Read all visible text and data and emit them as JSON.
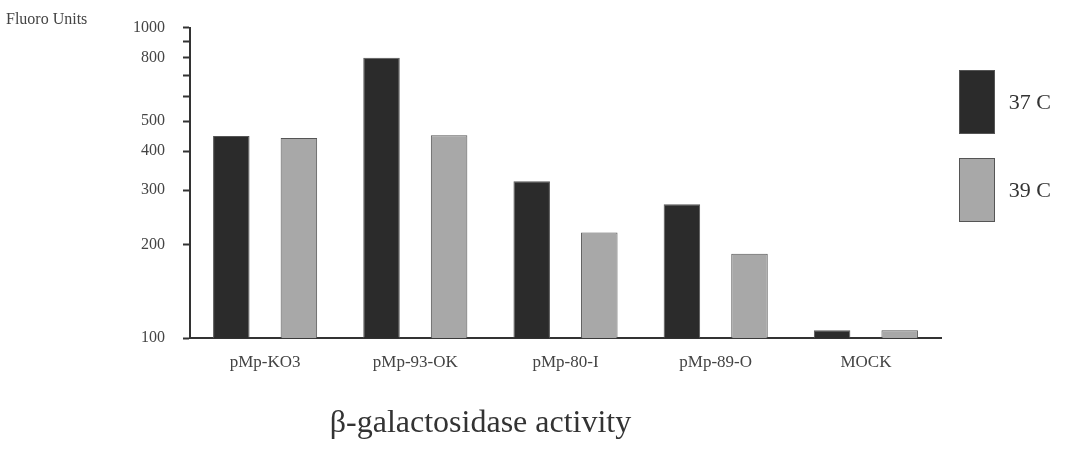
{
  "chart_data": {
    "type": "bar",
    "title": "β-galactosidase activity",
    "ylabel": "Fluoro Units",
    "categories": [
      "pMp-KO3",
      "pMp-93-OK",
      "pMp-80-I",
      "pMp-89-O",
      "MOCK"
    ],
    "series": [
      {
        "name": "37 C",
        "color": "#2b2b2b",
        "values": [
          448,
          800,
          320,
          270,
          106
        ]
      },
      {
        "name": "39 C",
        "color": "#a8a8a8",
        "values": [
          441,
          450,
          219,
          187,
          106
        ]
      }
    ],
    "log": true,
    "ylim": [
      100,
      1000
    ],
    "yticks": [
      100,
      200,
      300,
      400,
      500,
      {
        "value": 600,
        "label": null
      },
      {
        "value": 700,
        "label": null
      },
      800,
      {
        "value": 900,
        "label": null
      },
      1000
    ],
    "grid": false,
    "legend": "right"
  }
}
